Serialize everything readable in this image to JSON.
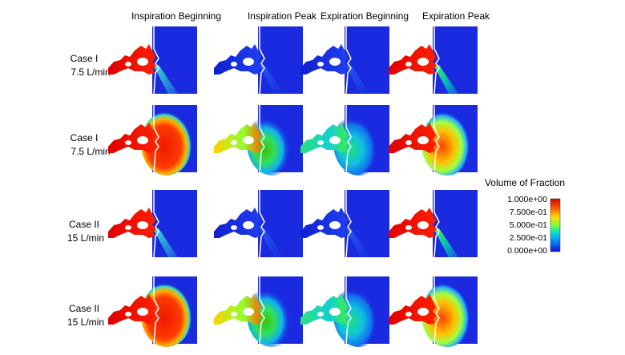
{
  "columns": [
    "Inspiration Beginning",
    "Inspiration Peak",
    "Expiration Beginning",
    "Expiration Peak"
  ],
  "rows": [
    {
      "case": "Case I",
      "flow": "7.5 L/min"
    },
    {
      "case": "Case I",
      "flow": "7.5 L/min"
    },
    {
      "case": "Case II",
      "flow": "15 L/min"
    },
    {
      "case": "Case II",
      "flow": "15 L/min"
    }
  ],
  "colorbar": {
    "title": "Volume of Fraction",
    "ticks": [
      "1.000e+00",
      "7.500e-01",
      "5.000e-01",
      "2.500e-01",
      "0.000e+00"
    ]
  }
}
